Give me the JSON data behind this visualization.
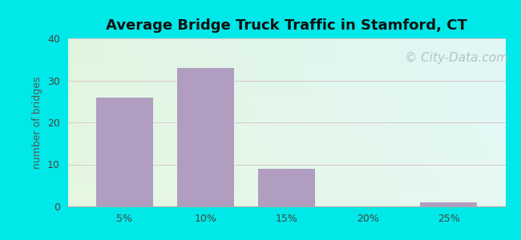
{
  "title": "Average Bridge Truck Traffic in Stamford, CT",
  "ylabel": "number of bridges",
  "categories": [
    "5%",
    "10%",
    "15%",
    "20%",
    "25%"
  ],
  "values": [
    26,
    33,
    9,
    0,
    1
  ],
  "bar_color": "#b09dc0",
  "bar_positions": [
    5,
    10,
    15,
    20,
    25
  ],
  "bar_width": 3.5,
  "ylim": [
    0,
    40
  ],
  "yticks": [
    0,
    10,
    20,
    30,
    40
  ],
  "outer_bg": "#00e8e8",
  "title_fontsize": 13,
  "axis_label_fontsize": 9,
  "tick_fontsize": 9,
  "watermark_text": "© City-Data.com",
  "watermark_color": "#aabbbb",
  "watermark_fontsize": 11,
  "ylabel_color": "#555555",
  "grid_color": "#ddeecc",
  "xlim": [
    1.5,
    28.5
  ]
}
